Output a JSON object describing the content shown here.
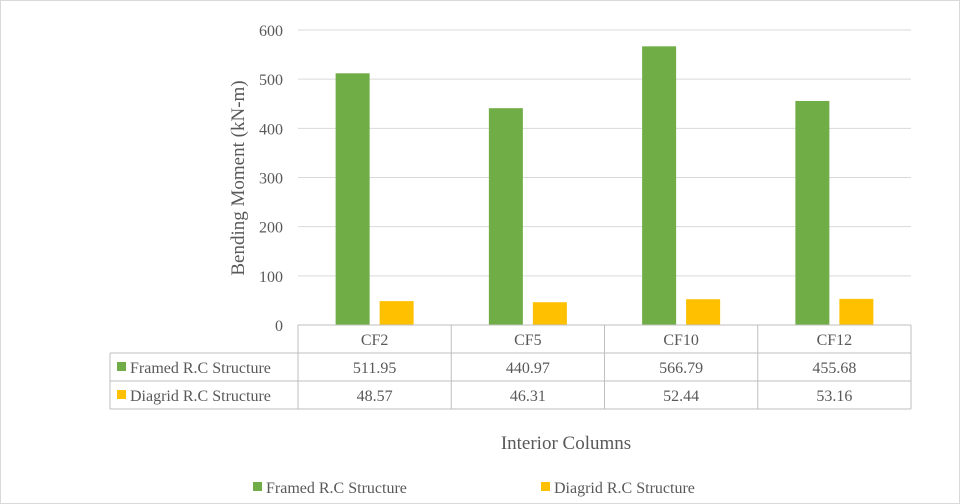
{
  "chart_data": {
    "type": "bar",
    "categories": [
      "CF2",
      "CF5",
      "CF10",
      "CF12"
    ],
    "series": [
      {
        "name": "Framed R.C Structure",
        "values": [
          511.95,
          440.97,
          566.79,
          455.68
        ],
        "color": "#70ad47"
      },
      {
        "name": "Diagrid R.C Structure",
        "values": [
          48.57,
          46.31,
          52.44,
          53.16
        ],
        "color": "#ffc000"
      }
    ],
    "xlabel": "Interior Columns",
    "ylabel": "Bending Moment (kN-m)",
    "ylim": [
      0,
      600
    ],
    "yticks": [
      0,
      100,
      200,
      300,
      400,
      500,
      600
    ],
    "grid": true,
    "legend": "bottom",
    "data_table": true
  }
}
